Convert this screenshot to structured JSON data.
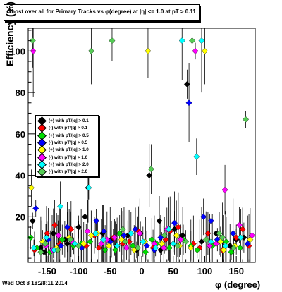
{
  "chart_data": {
    "type": "scatter",
    "title": "Ghost over all for Primary Tracks vs φ(degree) at |η| <= 1.0 at pT > 0.11",
    "xlabel": "φ (degree)",
    "ylabel": "Efficiency (%)",
    "xlim": [
      -180,
      180
    ],
    "ylim": [
      -2,
      111
    ],
    "x_ticks": [
      "-150",
      "-100",
      "-50",
      "0",
      "50",
      "100",
      "150"
    ],
    "y_ticks": [
      "20",
      "40",
      "60",
      "80",
      "100"
    ],
    "legend_position": "left-middle",
    "grid": false,
    "series": [
      {
        "name": "(+) with pT/|q| > 0.1",
        "color": "#000000",
        "x": [
          -173,
          -160,
          -140,
          -122,
          -100,
          -85,
          -62,
          -40,
          -22,
          -8,
          12,
          28,
          52,
          72,
          95,
          118,
          140,
          162,
          -155,
          -118,
          -90,
          -48,
          -2,
          30,
          65,
          108,
          150
        ],
        "y": [
          18,
          5,
          12,
          9,
          15,
          34,
          12,
          6,
          11,
          4,
          40,
          18,
          14,
          84,
          8,
          12,
          6,
          10,
          3,
          7,
          20,
          9,
          12,
          4,
          11,
          6,
          9
        ]
      },
      {
        "name": "(-) with pT/|q| > 0.1",
        "color": "#ff0000",
        "x": [
          -170,
          -150,
          -130,
          -112,
          -88,
          -68,
          -45,
          -20,
          -5,
          18,
          38,
          58,
          82,
          105,
          128,
          150,
          170,
          -138,
          -75,
          -30,
          45,
          92,
          160
        ],
        "y": [
          4,
          12,
          7,
          14,
          6,
          5,
          10,
          8,
          13,
          5,
          9,
          15,
          7,
          12,
          4,
          10,
          6,
          16,
          11,
          7,
          13,
          5,
          14
        ]
      },
      {
        "name": "(+) with pT/|q| > 0.5",
        "color": "#00dd00",
        "x": [
          -166,
          -145,
          -126,
          -108,
          -82,
          -58,
          -35,
          -14,
          6,
          24,
          44,
          66,
          88,
          112,
          134,
          156,
          -176,
          -96,
          -42,
          16,
          78,
          142
        ],
        "y": [
          5,
          3,
          9,
          6,
          8,
          4,
          12,
          6,
          3,
          7,
          5,
          9,
          4,
          6,
          8,
          5,
          10,
          7,
          4,
          9,
          6,
          3
        ]
      },
      {
        "name": "(-) with pT/|q| > 0.5",
        "color": "#0000ff",
        "x": [
          -168,
          -148,
          -118,
          -95,
          -72,
          -50,
          -28,
          -10,
          8,
          30,
          52,
          75,
          98,
          120,
          145,
          168,
          -128,
          -60,
          20,
          110
        ],
        "y": [
          24,
          9,
          15,
          5,
          18,
          8,
          11,
          14,
          6,
          10,
          17,
          75,
          20,
          9,
          12,
          7,
          6,
          13,
          4,
          18
        ]
      },
      {
        "name": "(+) with pT/|q| > 1.0",
        "color": "#ffff00",
        "x": [
          -175,
          -157,
          -135,
          -115,
          -92,
          -70,
          -52,
          -32,
          -12,
          10,
          32,
          55,
          78,
          100,
          125,
          148,
          172,
          -80,
          5,
          60,
          130
        ],
        "y": [
          34,
          8,
          5,
          10,
          7,
          12,
          6,
          9,
          4,
          100,
          7,
          11,
          5,
          100,
          8,
          6,
          9,
          11,
          8,
          6,
          4
        ]
      },
      {
        "name": "(-) with pT/|q| > 1.0",
        "color": "#ff00ff",
        "x": [
          -172,
          -152,
          -132,
          -110,
          -86,
          -64,
          -43,
          -24,
          -3,
          20,
          40,
          62,
          85,
          108,
          132,
          155,
          175,
          -142,
          -55,
          35,
          118
        ],
        "y": [
          100,
          6,
          11,
          8,
          13,
          7,
          10,
          5,
          12,
          7,
          14,
          9,
          100,
          6,
          33,
          16,
          11,
          4,
          9,
          5,
          7
        ]
      },
      {
        "name": "(+) with pT/|q| > 2.0",
        "color": "#00ffff",
        "x": [
          -171,
          -151,
          -129,
          -106,
          -84,
          -61,
          -39,
          -17,
          2,
          22,
          43,
          64,
          87,
          110,
          133,
          157,
          -139,
          -73,
          50,
          95
        ],
        "y": [
          5,
          10,
          25,
          7,
          34,
          9,
          6,
          12,
          8,
          5,
          14,
          105,
          49,
          8,
          6,
          10,
          4,
          12,
          7,
          105
        ]
      },
      {
        "name": "(-) with pT/|q| > 2.0",
        "color": "#55cc55",
        "x": [
          -173,
          -153,
          -133,
          -113,
          -80,
          -47,
          -26,
          -6,
          15,
          36,
          57,
          80,
          102,
          123,
          146,
          165,
          -160,
          -100,
          -30,
          70,
          128
        ],
        "y": [
          105,
          7,
          4,
          9,
          100,
          105,
          8,
          5,
          43,
          11,
          6,
          105,
          9,
          12,
          5,
          67,
          3,
          6,
          14,
          8,
          10
        ]
      }
    ]
  },
  "footer": "Wed Oct  8 18:28:11 2014"
}
